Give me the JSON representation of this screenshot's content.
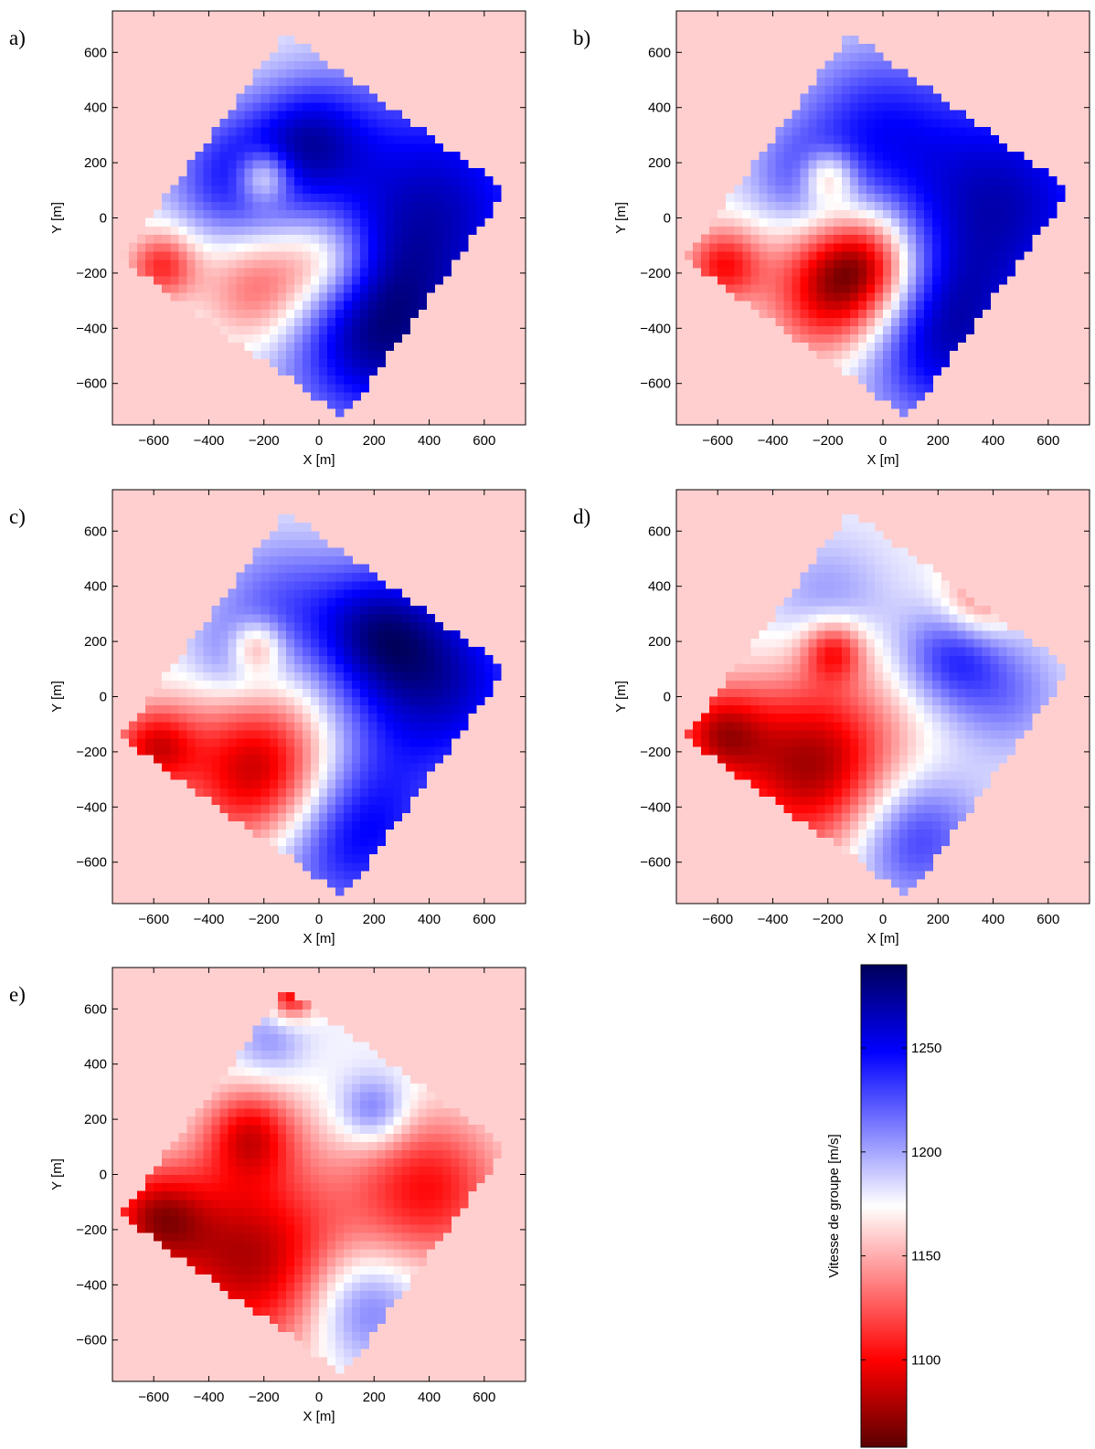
{
  "chart_data": {
    "type": "heatmap",
    "shared": {
      "xlabel": "X [m]",
      "ylabel": "Y [m]",
      "xlim": [
        -750,
        750
      ],
      "ylim": [
        -750,
        750
      ],
      "xticks": [
        -600,
        -400,
        -200,
        0,
        200,
        400,
        600
      ],
      "yticks": [
        -600,
        -400,
        -200,
        0,
        200,
        400,
        600
      ],
      "grid": false,
      "survey_area_corners": [
        [
          -120,
          670
        ],
        [
          680,
          100
        ],
        [
          90,
          -720
        ],
        [
          -720,
          -150
        ]
      ],
      "background_value": 1160
    },
    "panels": [
      {
        "label": "a)",
        "anomalies": [
          {
            "x": 420,
            "y": 50,
            "v": 1262,
            "r": 330
          },
          {
            "x": 200,
            "y": -450,
            "v": 1258,
            "r": 240
          },
          {
            "x": -300,
            "y": 150,
            "v": 1240,
            "r": 170
          },
          {
            "x": -30,
            "y": 300,
            "v": 1235,
            "r": 150
          },
          {
            "x": -200,
            "y": 150,
            "v": 1110,
            "r": 70
          },
          {
            "x": -200,
            "y": -250,
            "v": 1115,
            "r": 150
          },
          {
            "x": 30,
            "y": -150,
            "v": 1130,
            "r": 120
          },
          {
            "x": -570,
            "y": -170,
            "v": 1110,
            "r": 90
          }
        ]
      },
      {
        "label": "b)",
        "anomalies": [
          {
            "x": 430,
            "y": 60,
            "v": 1265,
            "r": 320
          },
          {
            "x": 200,
            "y": -450,
            "v": 1250,
            "r": 220
          },
          {
            "x": -50,
            "y": 350,
            "v": 1225,
            "r": 200
          },
          {
            "x": -300,
            "y": 150,
            "v": 1215,
            "r": 130
          },
          {
            "x": -200,
            "y": 150,
            "v": 1115,
            "r": 70
          },
          {
            "x": -170,
            "y": -270,
            "v": 1080,
            "r": 170
          },
          {
            "x": -50,
            "y": -150,
            "v": 1110,
            "r": 130
          },
          {
            "x": -580,
            "y": -170,
            "v": 1105,
            "r": 100
          }
        ]
      },
      {
        "label": "c)",
        "anomalies": [
          {
            "x": 450,
            "y": 50,
            "v": 1262,
            "r": 260
          },
          {
            "x": 100,
            "y": -480,
            "v": 1258,
            "r": 220
          },
          {
            "x": 200,
            "y": 250,
            "v": 1240,
            "r": 170
          },
          {
            "x": -150,
            "y": 350,
            "v": 1215,
            "r": 170
          },
          {
            "x": -300,
            "y": 150,
            "v": 1212,
            "r": 110
          },
          {
            "x": -230,
            "y": 180,
            "v": 1115,
            "r": 70
          },
          {
            "x": -200,
            "y": -280,
            "v": 1070,
            "r": 200
          },
          {
            "x": -600,
            "y": -180,
            "v": 1100,
            "r": 110
          }
        ]
      },
      {
        "label": "d)",
        "anomalies": [
          {
            "x": 250,
            "y": 150,
            "v": 1232,
            "r": 130
          },
          {
            "x": 100,
            "y": -500,
            "v": 1240,
            "r": 170
          },
          {
            "x": -200,
            "y": 350,
            "v": 1205,
            "r": 150
          },
          {
            "x": 450,
            "y": 0,
            "v": 1210,
            "r": 150
          },
          {
            "x": -180,
            "y": 170,
            "v": 1110,
            "r": 80
          },
          {
            "x": -250,
            "y": -250,
            "v": 1075,
            "r": 230
          },
          {
            "x": -600,
            "y": -130,
            "v": 1105,
            "r": 120
          },
          {
            "x": 350,
            "y": 350,
            "v": 1130,
            "r": 100
          }
        ]
      },
      {
        "label": "e)",
        "anomalies": [
          {
            "x": 200,
            "y": 230,
            "v": 1225,
            "r": 90
          },
          {
            "x": 150,
            "y": -470,
            "v": 1230,
            "r": 150
          },
          {
            "x": -180,
            "y": 480,
            "v": 1205,
            "r": 90
          },
          {
            "x": -250,
            "y": -300,
            "v": 1080,
            "r": 260
          },
          {
            "x": -250,
            "y": 150,
            "v": 1110,
            "r": 120
          },
          {
            "x": 400,
            "y": -50,
            "v": 1105,
            "r": 200
          },
          {
            "x": -600,
            "y": -150,
            "v": 1105,
            "r": 130
          },
          {
            "x": -100,
            "y": 650,
            "v": 1100,
            "r": 60
          }
        ]
      }
    ],
    "colorbar": {
      "label": "Vitesse de groupe [m/s]",
      "ticks": [
        1100,
        1150,
        1200,
        1250
      ],
      "range": [
        1058,
        1290
      ],
      "colormap": [
        "#5a0000",
        "#ff0000",
        "#ffffff",
        "#0000ff",
        "#00005a"
      ]
    }
  }
}
